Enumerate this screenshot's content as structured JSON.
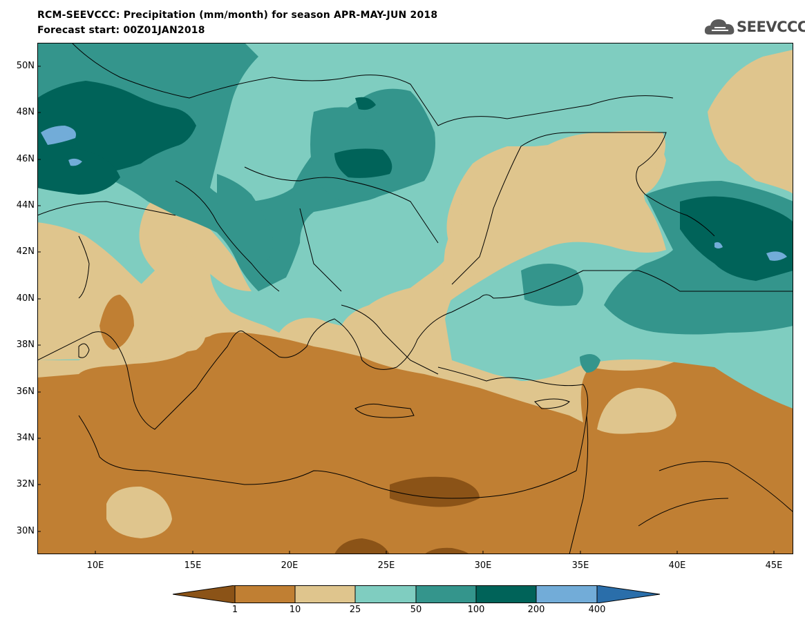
{
  "title": {
    "line1": "RCM-SEEVCCC: Precipitation (mm/month) for season APR-MAY-JUN 2018",
    "line2": "Forecast start: 00Z01JAN2018"
  },
  "logo": {
    "text": "SEEVCCC",
    "icon": "cloud-icon"
  },
  "map": {
    "lat_labels": [
      "50N",
      "48N",
      "46N",
      "44N",
      "42N",
      "40N",
      "38N",
      "36N",
      "34N",
      "32N",
      "30N"
    ],
    "lon_labels": [
      "10E",
      "15E",
      "20E",
      "25E",
      "30E",
      "35E",
      "40E",
      "45E"
    ],
    "lat_range": [
      29,
      51
    ],
    "lon_range": [
      7,
      46
    ]
  },
  "legend": {
    "tick_labels": [
      "1",
      "10",
      "25",
      "50",
      "100",
      "200",
      "400"
    ],
    "colors": [
      "#8b5317",
      "#c07f33",
      "#dfc58d",
      "#7fcdc0",
      "#34958c",
      "#006359",
      "#72acd8",
      "#2a6eaa"
    ]
  }
}
